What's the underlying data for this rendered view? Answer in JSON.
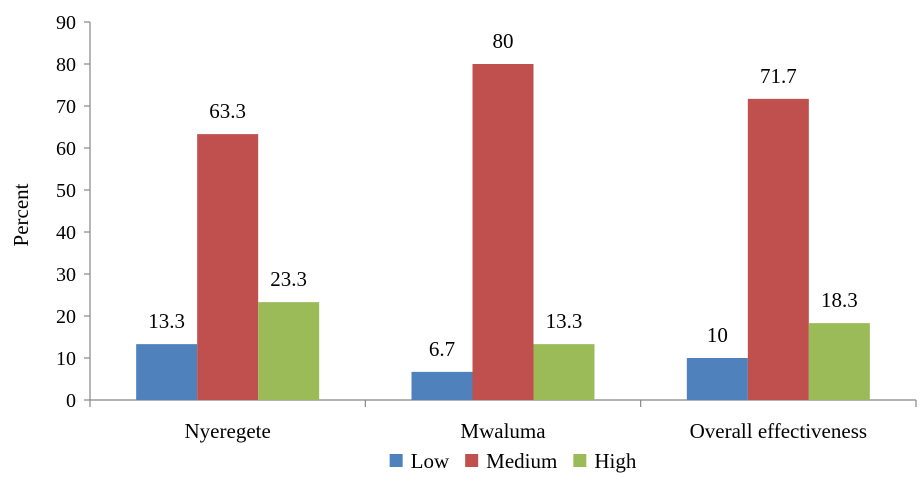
{
  "chart_data": {
    "type": "bar",
    "categories": [
      "Nyeregete",
      "Mwaluma",
      "Overall effectiveness"
    ],
    "series": [
      {
        "name": "Low",
        "values": [
          13.3,
          6.7,
          10
        ],
        "color": "#4F81BD",
        "labels": [
          "13.3",
          "6.7",
          "10"
        ]
      },
      {
        "name": "Medium",
        "values": [
          63.3,
          80,
          71.7
        ],
        "color": "#C0504D",
        "labels": [
          "63.3",
          "80",
          "71.7"
        ]
      },
      {
        "name": "High",
        "values": [
          23.3,
          13.3,
          18.3
        ],
        "color": "#9BBB59",
        "labels": [
          "23.3",
          "13.3",
          "18.3"
        ]
      }
    ],
    "ylabel": "Percent",
    "xlabel": "",
    "ylim": [
      0,
      90
    ],
    "yticks": [
      0,
      10,
      20,
      30,
      40,
      50,
      60,
      70,
      80,
      90
    ],
    "grid": false,
    "legend_position": "bottom"
  }
}
